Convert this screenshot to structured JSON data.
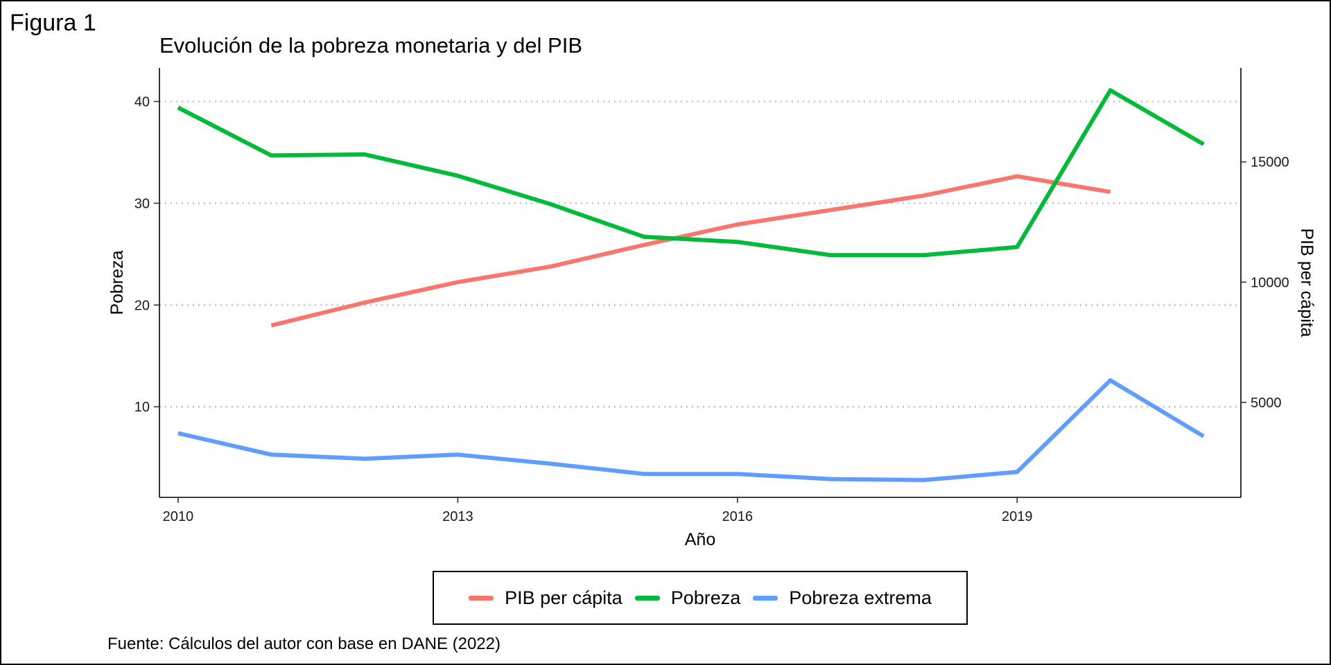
{
  "figure_label": "Figura 1",
  "caption": "Fuente: Cálculos del autor con base en DANE (2022)",
  "chart_data": {
    "type": "line",
    "title": "Evolución de la pobreza monetaria y del PIB",
    "xlabel": "Año",
    "ylabel": "Pobreza",
    "y2label": "PIB per cápita",
    "xlim": [
      2009.8,
      2021.4
    ],
    "ylim": [
      1.1,
      43.3
    ],
    "y2lim": [
      1051,
      18909
    ],
    "x_ticks": [
      2010,
      2013,
      2016,
      2019
    ],
    "y_ticks": [
      10,
      20,
      30,
      40
    ],
    "y2_ticks": [
      5000,
      10000,
      15000
    ],
    "grid": "horizontal-dotted",
    "legend_position": "bottom",
    "series": [
      {
        "name": "PIB per cápita",
        "axis": "right",
        "color": "#F8766D",
        "x": [
          2011,
          2012,
          2013,
          2014,
          2015,
          2016,
          2017,
          2018,
          2019,
          2020
        ],
        "values": [
          8200,
          9150,
          10000,
          10650,
          11550,
          12400,
          13000,
          13600,
          14400,
          13750
        ]
      },
      {
        "name": "Pobreza",
        "axis": "left",
        "color": "#00BA38",
        "x": [
          2010,
          2011,
          2012,
          2013,
          2014,
          2015,
          2016,
          2017,
          2018,
          2019,
          2020,
          2021
        ],
        "values": [
          39.4,
          34.7,
          34.8,
          32.7,
          29.9,
          26.7,
          26.2,
          24.9,
          24.9,
          25.7,
          41.1,
          35.8
        ]
      },
      {
        "name": "Pobreza extrema",
        "axis": "left",
        "color": "#619CFF",
        "x": [
          2010,
          2011,
          2012,
          2013,
          2014,
          2015,
          2016,
          2017,
          2018,
          2019,
          2020,
          2021
        ],
        "values": [
          7.4,
          5.3,
          4.9,
          5.3,
          4.4,
          3.4,
          3.4,
          2.9,
          2.8,
          3.6,
          12.6,
          7.1
        ]
      }
    ]
  }
}
